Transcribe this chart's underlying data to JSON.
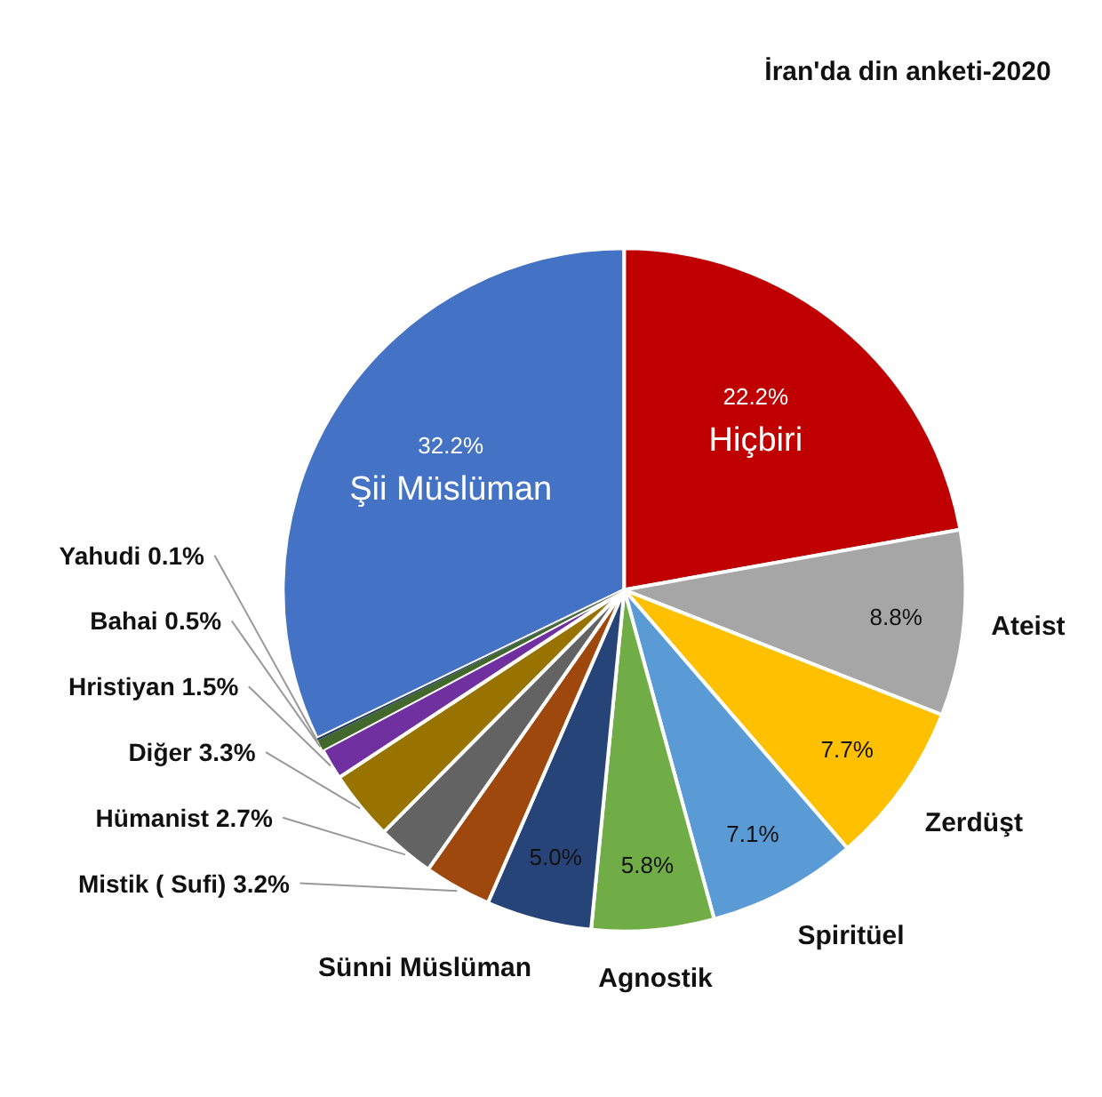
{
  "chart_data": {
    "type": "pie",
    "title": "İran'da din anketi-2020",
    "categories": [
      "Hiçbiri",
      "Ateist",
      "Zerdüşt",
      "Spiritüel",
      "Agnostik",
      "Sünni Müslüman",
      "Mistik ( Sufi)",
      "Hümanist",
      "Diğer",
      "Hristiyan",
      "Bahai",
      "Yahudi",
      "Şii Müslüman"
    ],
    "values": [
      22.2,
      8.8,
      7.7,
      7.1,
      5.8,
      5.0,
      3.2,
      2.7,
      3.3,
      1.5,
      0.5,
      0.1,
      32.2
    ],
    "value_labels": [
      "22.2%",
      "8.8%",
      "7.7%",
      "7.1%",
      "5.8%",
      "5.0%",
      "3.2%",
      "2.7%",
      "3.3%",
      "1.5%",
      "0.5%",
      "0.1%",
      "32.2%"
    ],
    "colors": [
      "#c00000",
      "#a6a6a6",
      "#ffc000",
      "#5b9bd5",
      "#70ad47",
      "#264478",
      "#9e480e",
      "#636363",
      "#997300",
      "#7030a0",
      "#43682b",
      "#1f3864",
      "#4472c4"
    ]
  }
}
